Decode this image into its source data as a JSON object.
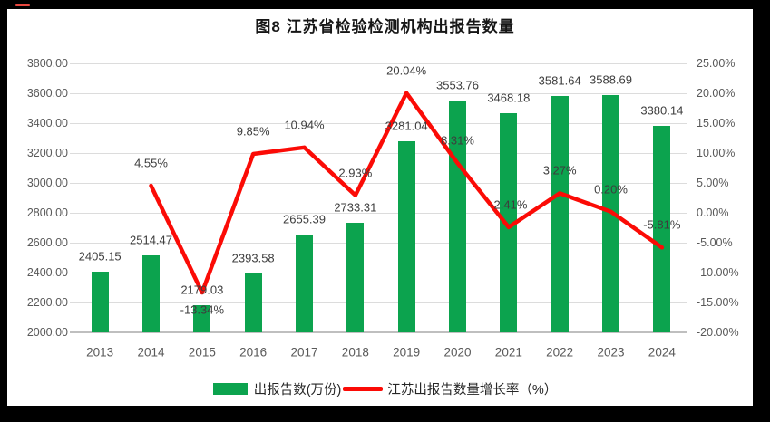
{
  "frame": {
    "red_mark_color": "#e8473f"
  },
  "legend": {
    "bar_item": "出报告数(万份)",
    "line_item": "江苏出报告数量增长率（%）"
  },
  "chart_data": {
    "type": "bar",
    "subtype": "bar-line-combo",
    "title": "图8  江苏省检验检测机构出报告数量",
    "categories": [
      "2013",
      "2014",
      "2015",
      "2016",
      "2017",
      "2018",
      "2019",
      "2020",
      "2021",
      "2022",
      "2023",
      "2024"
    ],
    "series": [
      {
        "name": "出报告数(万份)",
        "type": "bar",
        "axis": "left",
        "color": "#0ca34e",
        "values": [
          2405.15,
          2514.47,
          2179.03,
          2393.58,
          2655.39,
          2733.31,
          3281.04,
          3553.76,
          3468.18,
          3581.64,
          3588.69,
          3380.14
        ],
        "labels": [
          "2405.15",
          "2514.47",
          "2179.03",
          "2393.58",
          "2655.39",
          "2733.31",
          "3281.04",
          "3553.76",
          "3468.18",
          "3581.64",
          "3588.69",
          "3380.14"
        ]
      },
      {
        "name": "江苏出报告数量增长率（%）",
        "type": "line",
        "axis": "right",
        "color": "#fb0b06",
        "values": [
          null,
          4.55,
          -13.34,
          9.85,
          10.94,
          2.93,
          20.04,
          8.31,
          -2.41,
          3.27,
          0.2,
          -5.81
        ],
        "labels": [
          null,
          "4.55%",
          "-13.34%",
          "9.85%",
          "10.94%",
          "2.93%",
          "20.04%",
          "8.31%",
          "-2.41%",
          "3.27%",
          "0.20%",
          "-5.81%"
        ],
        "label_positions": [
          null,
          "above",
          "below",
          "above",
          "above",
          "above",
          "above",
          "above",
          "above",
          "above",
          "above",
          "above"
        ]
      }
    ],
    "left_axis": {
      "min": 2000,
      "max": 3800,
      "step": 200,
      "ticks": [
        "3800.00",
        "3600.00",
        "3400.00",
        "3200.00",
        "3000.00",
        "2800.00",
        "2600.00",
        "2400.00",
        "2200.00",
        "2000.00"
      ]
    },
    "right_axis": {
      "min": -20,
      "max": 25,
      "step": 5,
      "ticks": [
        "25.00%",
        "20.00%",
        "15.00%",
        "10.00%",
        "5.00%",
        "0.00%",
        "-5.00%",
        "-10.00%",
        "-15.00%",
        "-20.00%"
      ]
    },
    "grid": "horizontal-only",
    "legend_position": "bottom"
  }
}
